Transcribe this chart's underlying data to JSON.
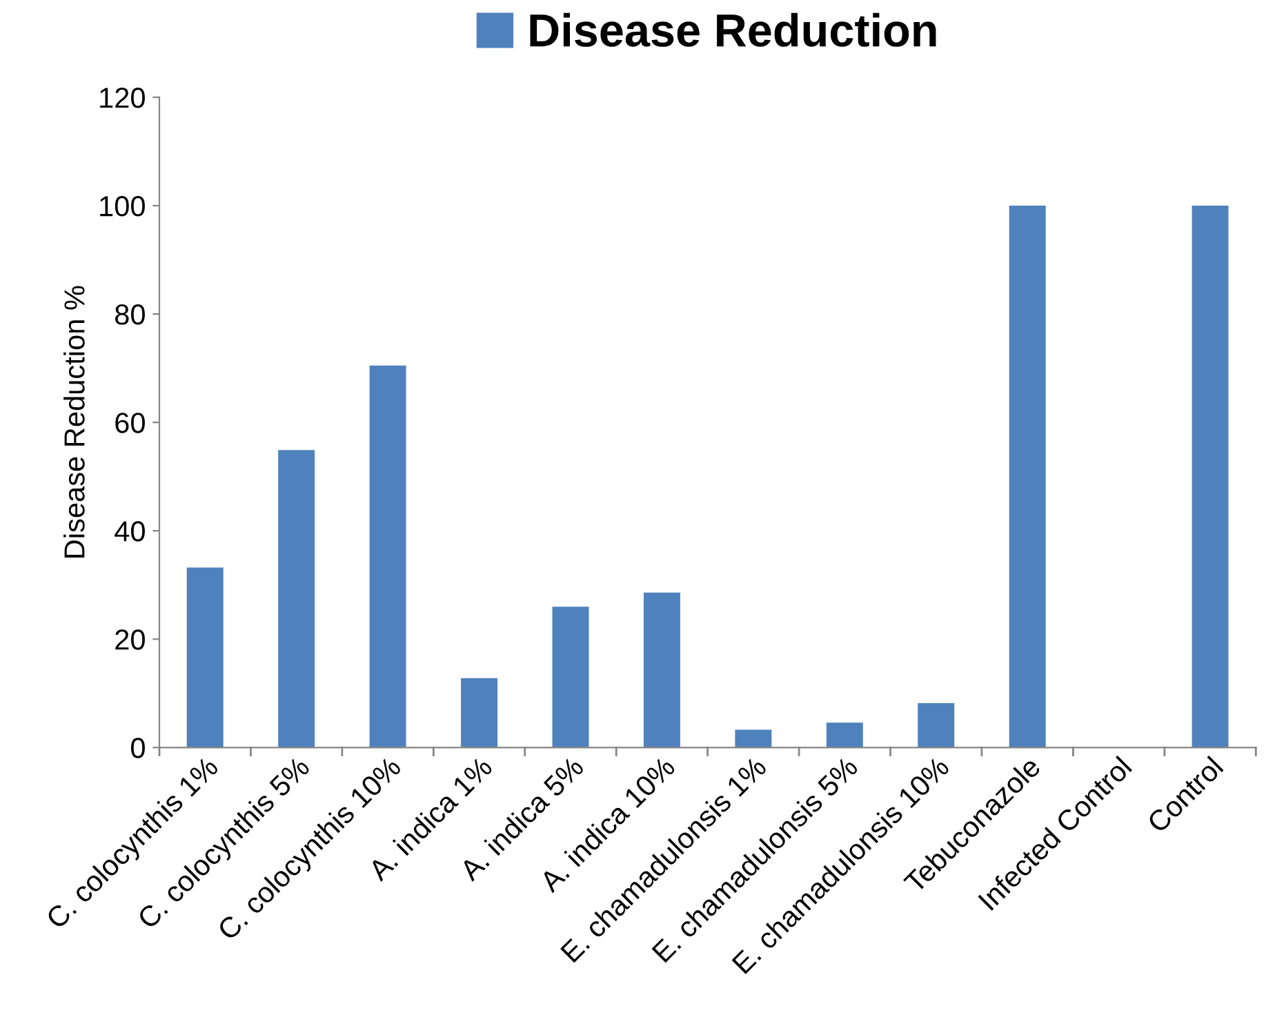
{
  "chart_data": {
    "type": "bar",
    "ylabel": "Disease Reduction %",
    "categories": [
      "C. colocynthis 1%",
      "C. colocynthis 5%",
      "C. colocynthis 10%",
      "A. indica 1%",
      "A. indica 5%",
      "A. indica 10%",
      "E. chamadulonsis 1%",
      "E. chamadulonsis 5%",
      "E. chamadulonsis 10%",
      "Tebuconazole",
      "Infected Control",
      "Control"
    ],
    "series": [
      {
        "name": "Disease Reduction",
        "color": "#4f81bd",
        "values": [
          33.2,
          54.9,
          70.5,
          12.8,
          26,
          28.6,
          3.3,
          4.6,
          8.2,
          100,
          0,
          100
        ]
      }
    ],
    "ylim": [
      0,
      120
    ],
    "yticks": [
      0,
      20,
      40,
      60,
      80,
      100,
      120
    ],
    "grid": false,
    "legend": "top"
  }
}
